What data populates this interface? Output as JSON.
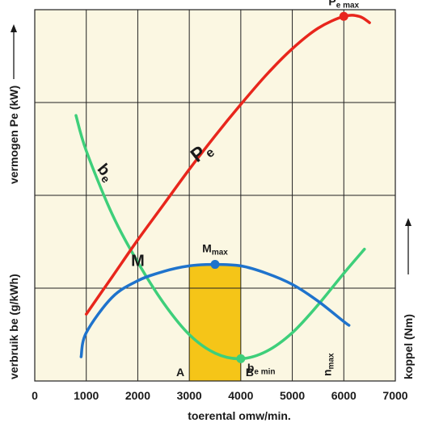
{
  "chart_data": {
    "type": "line",
    "xlabel": "toerental omw/min.",
    "ylabel_left_top": "vermogen Pe (kW)",
    "ylabel_left_bottom": "verbruik be (g/kWh)",
    "ylabel_right": "koppel (Nm)",
    "xlim": [
      0,
      7000
    ],
    "x_ticks": [
      0,
      1000,
      2000,
      3000,
      4000,
      5000,
      6000,
      7000
    ],
    "x_tick_labels": [
      "0",
      "1000",
      "2000",
      "3000",
      "4000",
      "5000",
      "6000",
      "7000"
    ],
    "grid": true,
    "colors": {
      "background": "#fbf7e2",
      "grid": "#222222",
      "Pe": "#e8261c",
      "be": "#3ecf7a",
      "M": "#1f73cc",
      "band": "#f5c518"
    },
    "series": [
      {
        "name": "P",
        "sub": "e",
        "color": "#e8261c",
        "x": [
          1000,
          1500,
          2000,
          2500,
          3000,
          3500,
          4000,
          4500,
          5000,
          5500,
          6000,
          6300,
          6500
        ],
        "y": [
          0.18,
          0.28,
          0.38,
          0.475,
          0.57,
          0.66,
          0.745,
          0.825,
          0.895,
          0.95,
          0.982,
          0.982,
          0.965
        ]
      },
      {
        "name": "b",
        "sub": "e",
        "color": "#3ecf7a",
        "x": [
          800,
          1000,
          1500,
          2000,
          2500,
          3000,
          3500,
          4000,
          4500,
          5000,
          5500,
          6000,
          6400
        ],
        "y": [
          0.715,
          0.62,
          0.45,
          0.32,
          0.21,
          0.125,
          0.075,
          0.06,
          0.08,
          0.13,
          0.205,
          0.29,
          0.355
        ]
      },
      {
        "name": "M",
        "color": "#1f73cc",
        "x": [
          900,
          1000,
          1500,
          2000,
          2500,
          3000,
          3500,
          4000,
          4500,
          5000,
          5500,
          6000,
          6100
        ],
        "y": [
          0.065,
          0.13,
          0.225,
          0.27,
          0.295,
          0.31,
          0.314,
          0.31,
          0.29,
          0.26,
          0.215,
          0.16,
          0.15
        ]
      }
    ],
    "highlight_band": {
      "x_start": 3000,
      "x_end": 4000,
      "y_top": 0.31
    },
    "annotations": {
      "pe_max": {
        "main": "P",
        "sub": "e max",
        "x": 6000,
        "y": 0.982
      },
      "m_max": {
        "main": "M",
        "sub": "max",
        "x": 3500,
        "y": 0.314
      },
      "be_min": {
        "main": "b",
        "sub": "e min",
        "x": 4000,
        "y": 0.06
      },
      "n_max": {
        "main": "n",
        "sub": "max",
        "x": 6000
      },
      "a": "A",
      "b": "B"
    }
  }
}
